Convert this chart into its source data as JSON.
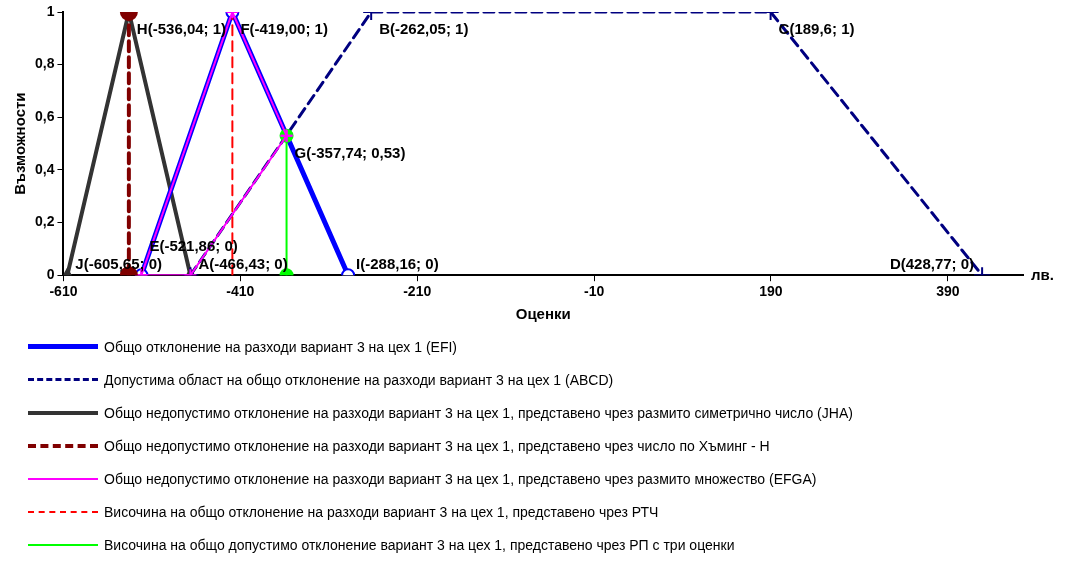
{
  "chart_data": {
    "type": "line",
    "xlabel": "Оценки",
    "ylabel": "Възможности",
    "xlim": [
      -610,
      475
    ],
    "xticks": [
      -610,
      -410,
      -210,
      -10,
      190,
      390
    ],
    "ylim": [
      0,
      1
    ],
    "yticks": [
      0,
      {
        "value": 0.2,
        "label": "0,2"
      },
      {
        "value": 0.4,
        "label": "0,4"
      },
      {
        "value": 0.6,
        "label": "0,6"
      },
      {
        "value": 0.8,
        "label": "0,8"
      },
      1
    ],
    "grid": false,
    "legend": "bottom",
    "series": [
      {
        "name": "Общо отклонение на разходи вариант 3 на цех 1 (EFI)",
        "color": "#0000ff",
        "marker": "circle",
        "line_style": "solid",
        "x": [
          -521.86,
          -419,
          -288.16
        ],
        "values": [
          0,
          1,
          0
        ]
      },
      {
        "name": "Допустима област на общо отклонение на разходи вариант 3 на цех 1 (ABCD)",
        "color": "#000080",
        "marker": "cross",
        "line_style": "dashed",
        "x": [
          -466.43,
          -262.05,
          189.6,
          428.77
        ],
        "values": [
          0,
          1,
          1,
          0
        ]
      },
      {
        "name": "Общо недопустимо отклонение на разходи вариант 3 на цех 1, представено чрез размито симетрично число (JHA)",
        "color": "#333333",
        "marker": "triangle",
        "line_style": "solid",
        "x": [
          -605.65,
          -536.04,
          -466.43
        ],
        "values": [
          0,
          1,
          0
        ]
      },
      {
        "name": "Общо недопустимо отклонение на разходи вариант 3 на цех 1, представено чрез число по Хъминг - H",
        "color": "#800000",
        "marker": "circle",
        "line_style": "dashed",
        "x": [
          -536.04,
          -536.04
        ],
        "values": [
          0,
          1
        ]
      },
      {
        "name": "Общо недопустимо отклонение на разходи вариант 3 на цех 1, представено чрез размито множество (EFGA)",
        "color": "#ff00ff",
        "marker": "cross",
        "line_style": "solid",
        "x": [
          -521.86,
          -419,
          -357.74,
          null,
          -521.86,
          -466.43,
          -357.74
        ],
        "values": [
          0,
          1,
          0.53,
          null,
          0,
          0,
          0.53
        ]
      },
      {
        "name": "Височина на общо отклонение на разходи вариант 3 на цех 1, представено чрез РТЧ",
        "color": "#ff0000",
        "marker": "none",
        "line_style": "dashed",
        "x": [
          -419,
          -419
        ],
        "values": [
          0,
          1
        ]
      },
      {
        "name": "Височина на общо допустимо отклонение вариант 3 на цех 1, представено чрез РП с три оценки",
        "color": "#00ff00",
        "marker": "circle",
        "line_style": "solid",
        "x": [
          -357.74,
          -357.74
        ],
        "values": [
          0,
          0.53
        ]
      }
    ],
    "annotations": [
      {
        "text": "H(-536,04; 1)",
        "x": -536.04,
        "y": 1
      },
      {
        "text": "F(-419,00; 1)",
        "x": -419,
        "y": 1
      },
      {
        "text": "B(-262,05; 1)",
        "x": -262.05,
        "y": 1
      },
      {
        "text": "C(189,6; 1)",
        "x": 189.6,
        "y": 1
      },
      {
        "text": "G(-357,74; 0,53)",
        "x": -357.74,
        "y": 0.53
      },
      {
        "text": "J(-605,65; 0)",
        "x": -605.65,
        "y": 0
      },
      {
        "text": "E(-521,86; 0)",
        "x": -521.86,
        "y": 0
      },
      {
        "text": "A(-466,43; 0)",
        "x": -466.43,
        "y": 0
      },
      {
        "text": "I(-288,16; 0)",
        "x": -288.16,
        "y": 0
      },
      {
        "text": "D(428,77; 0)",
        "x": 428.77,
        "y": 0
      },
      "лв."
    ]
  }
}
